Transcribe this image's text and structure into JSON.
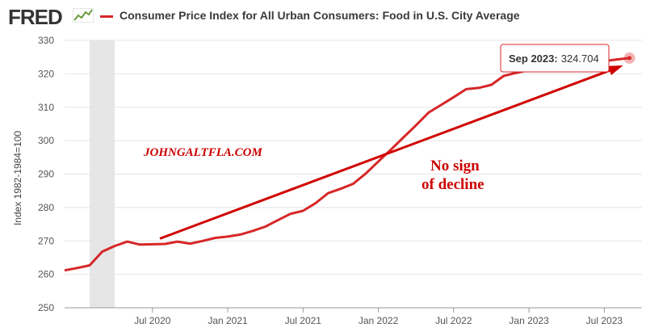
{
  "header": {
    "logo_text": "FRED",
    "legend_label": "Consumer Price Index for All Urban Consumers: Food in U.S. City Average",
    "series_color": "#d62728",
    "arrow_color": "#d00000",
    "recession_color": "#e6e6e6"
  },
  "chart_data": {
    "type": "line",
    "title": "Consumer Price Index for All Urban Consumers: Food in U.S. City Average",
    "xlabel": "",
    "ylabel": "Index 1982-1984=100",
    "ylim": [
      250,
      330
    ],
    "xlim": [
      2019.917,
      2023.75
    ],
    "y_ticks": [
      250,
      260,
      270,
      280,
      290,
      300,
      310,
      320,
      330
    ],
    "x_ticks": [
      {
        "label": "Jul 2020",
        "t": 2020.5
      },
      {
        "label": "Jan 2021",
        "t": 2021.0
      },
      {
        "label": "Jul 2021",
        "t": 2021.5
      },
      {
        "label": "Jan 2022",
        "t": 2022.0
      },
      {
        "label": "Jul 2022",
        "t": 2022.5
      },
      {
        "label": "Jan 2023",
        "t": 2023.0
      },
      {
        "label": "Jul 2023",
        "t": 2023.5
      }
    ],
    "recession": {
      "start": 2020.083,
      "end": 2020.25
    },
    "series": [
      {
        "name": "Consumer Price Index for All Urban Consumers: Food in U.S. City Average",
        "t": [
          2019.917,
          2020.0,
          2020.083,
          2020.167,
          2020.25,
          2020.333,
          2020.417,
          2020.5,
          2020.583,
          2020.667,
          2020.75,
          2020.833,
          2020.917,
          2021.0,
          2021.083,
          2021.167,
          2021.25,
          2021.333,
          2021.417,
          2021.5,
          2021.583,
          2021.667,
          2021.75,
          2021.833,
          2021.917,
          2022.0,
          2022.083,
          2022.167,
          2022.25,
          2022.333,
          2022.417,
          2022.5,
          2022.583,
          2022.667,
          2022.75,
          2022.833,
          2022.917,
          2023.0,
          2023.083,
          2023.167,
          2023.25,
          2023.333,
          2023.417,
          2023.5,
          2023.583,
          2023.667
        ],
        "values": [
          261.2,
          261.9,
          262.7,
          266.8,
          268.5,
          269.8,
          268.9,
          269.0,
          269.1,
          269.8,
          269.2,
          270.0,
          270.9,
          271.3,
          271.9,
          273.0,
          274.3,
          276.2,
          278.1,
          279.0,
          281.3,
          284.3,
          285.6,
          287.1,
          290.2,
          293.8,
          297.3,
          301.0,
          304.6,
          308.4,
          310.7,
          313.0,
          315.4,
          315.8,
          316.7,
          319.4,
          320.3,
          321.1,
          321.6,
          322.0,
          322.5,
          323.0,
          323.5,
          323.8,
          324.3,
          324.704
        ]
      }
    ],
    "annotations": {
      "tooltip_date": "Sep 2023:",
      "tooltip_value": "324.704",
      "watermark": "JOHNGALTFLA.COM",
      "comment_line1": "No sign",
      "comment_line2": "of decline"
    },
    "arrow": {
      "from": {
        "t": 2020.55,
        "v": 270.7
      },
      "to": {
        "t": 2023.625,
        "v": 322.5
      }
    }
  }
}
